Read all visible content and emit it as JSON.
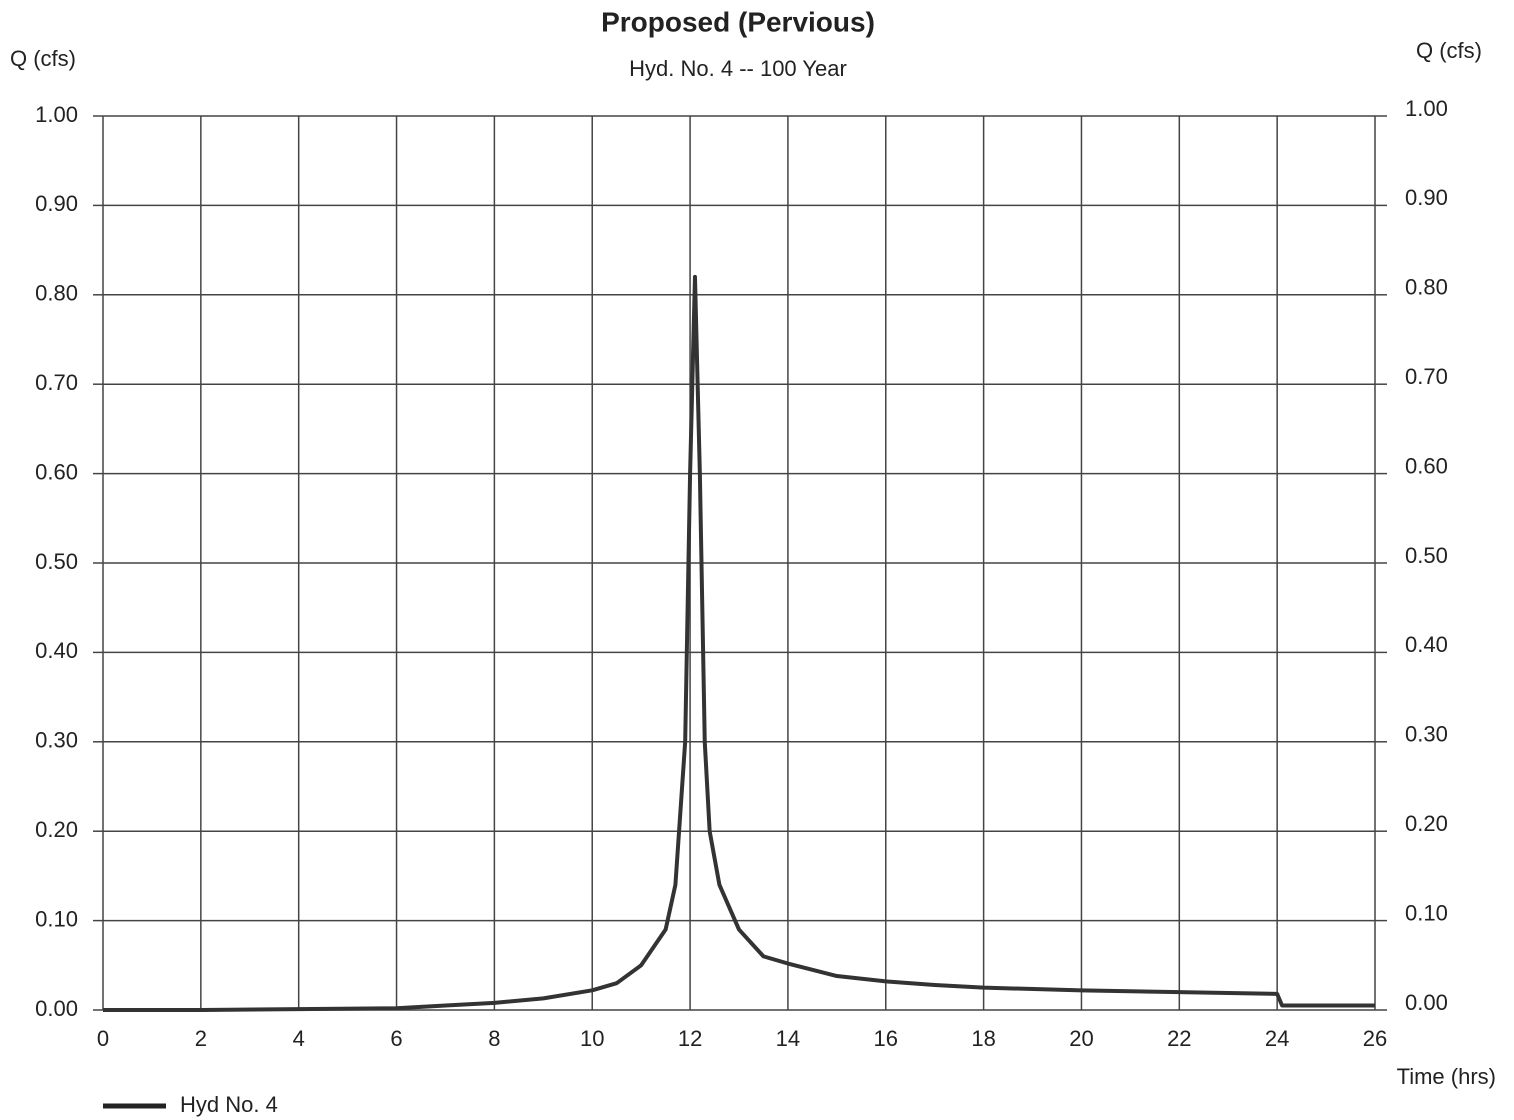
{
  "chart_data": {
    "type": "line",
    "title": "Proposed (Pervious)",
    "subtitle": "Hyd. No. 4 -- 100 Year",
    "y_label": "Q (cfs)",
    "y2_label": "Q (cfs)",
    "x_label": "Time (hrs)",
    "x": [
      0,
      2,
      4,
      6,
      7,
      8,
      9,
      10,
      10.5,
      11,
      11.5,
      11.7,
      11.9,
      12.0,
      12.1,
      12.2,
      12.3,
      12.4,
      12.6,
      13,
      13.5,
      14,
      15,
      16,
      17,
      18,
      20,
      22,
      24,
      24.1,
      26
    ],
    "series": [
      {
        "name": "Hyd No. 4",
        "color": "#333333",
        "values": [
          0,
          0,
          0.001,
          0.002,
          0.005,
          0.008,
          0.013,
          0.022,
          0.03,
          0.05,
          0.09,
          0.14,
          0.3,
          0.6,
          0.82,
          0.6,
          0.3,
          0.2,
          0.14,
          0.09,
          0.06,
          0.052,
          0.038,
          0.032,
          0.028,
          0.025,
          0.022,
          0.02,
          0.018,
          0.005,
          0.005
        ]
      }
    ],
    "xlim": [
      0,
      26
    ],
    "xticks": [
      0,
      2,
      4,
      6,
      8,
      10,
      12,
      14,
      16,
      18,
      20,
      22,
      24,
      26
    ],
    "ylim": [
      0,
      1
    ],
    "yticks": [
      {
        "value": 0,
        "label": "0.00"
      },
      {
        "value": 0.1,
        "label": "0.10"
      },
      {
        "value": 0.2,
        "label": "0.20"
      },
      {
        "value": 0.3,
        "label": "0.30"
      },
      {
        "value": 0.4,
        "label": "0.40"
      },
      {
        "value": 0.5,
        "label": "0.50"
      },
      {
        "value": 0.6,
        "label": "0.60"
      },
      {
        "value": 0.7,
        "label": "0.70"
      },
      {
        "value": 0.8,
        "label": "0.80"
      },
      {
        "value": 0.9,
        "label": "0.90"
      },
      {
        "value": 1,
        "label": "1.00"
      }
    ],
    "y2lim": [
      0,
      1
    ],
    "y2ticks": [
      {
        "value": 0,
        "label": "0.00"
      },
      {
        "value": 0.1,
        "label": "0.10"
      },
      {
        "value": 0.2,
        "label": "0.20"
      },
      {
        "value": 0.3,
        "label": "0.30"
      },
      {
        "value": 0.4,
        "label": "0.40"
      },
      {
        "value": 0.5,
        "label": "0.50"
      },
      {
        "value": 0.6,
        "label": "0.60"
      },
      {
        "value": 0.7,
        "label": "0.70"
      },
      {
        "value": 0.8,
        "label": "0.80"
      },
      {
        "value": 0.9,
        "label": "0.90"
      },
      {
        "value": 1,
        "label": "1.00"
      }
    ],
    "grid": true
  }
}
